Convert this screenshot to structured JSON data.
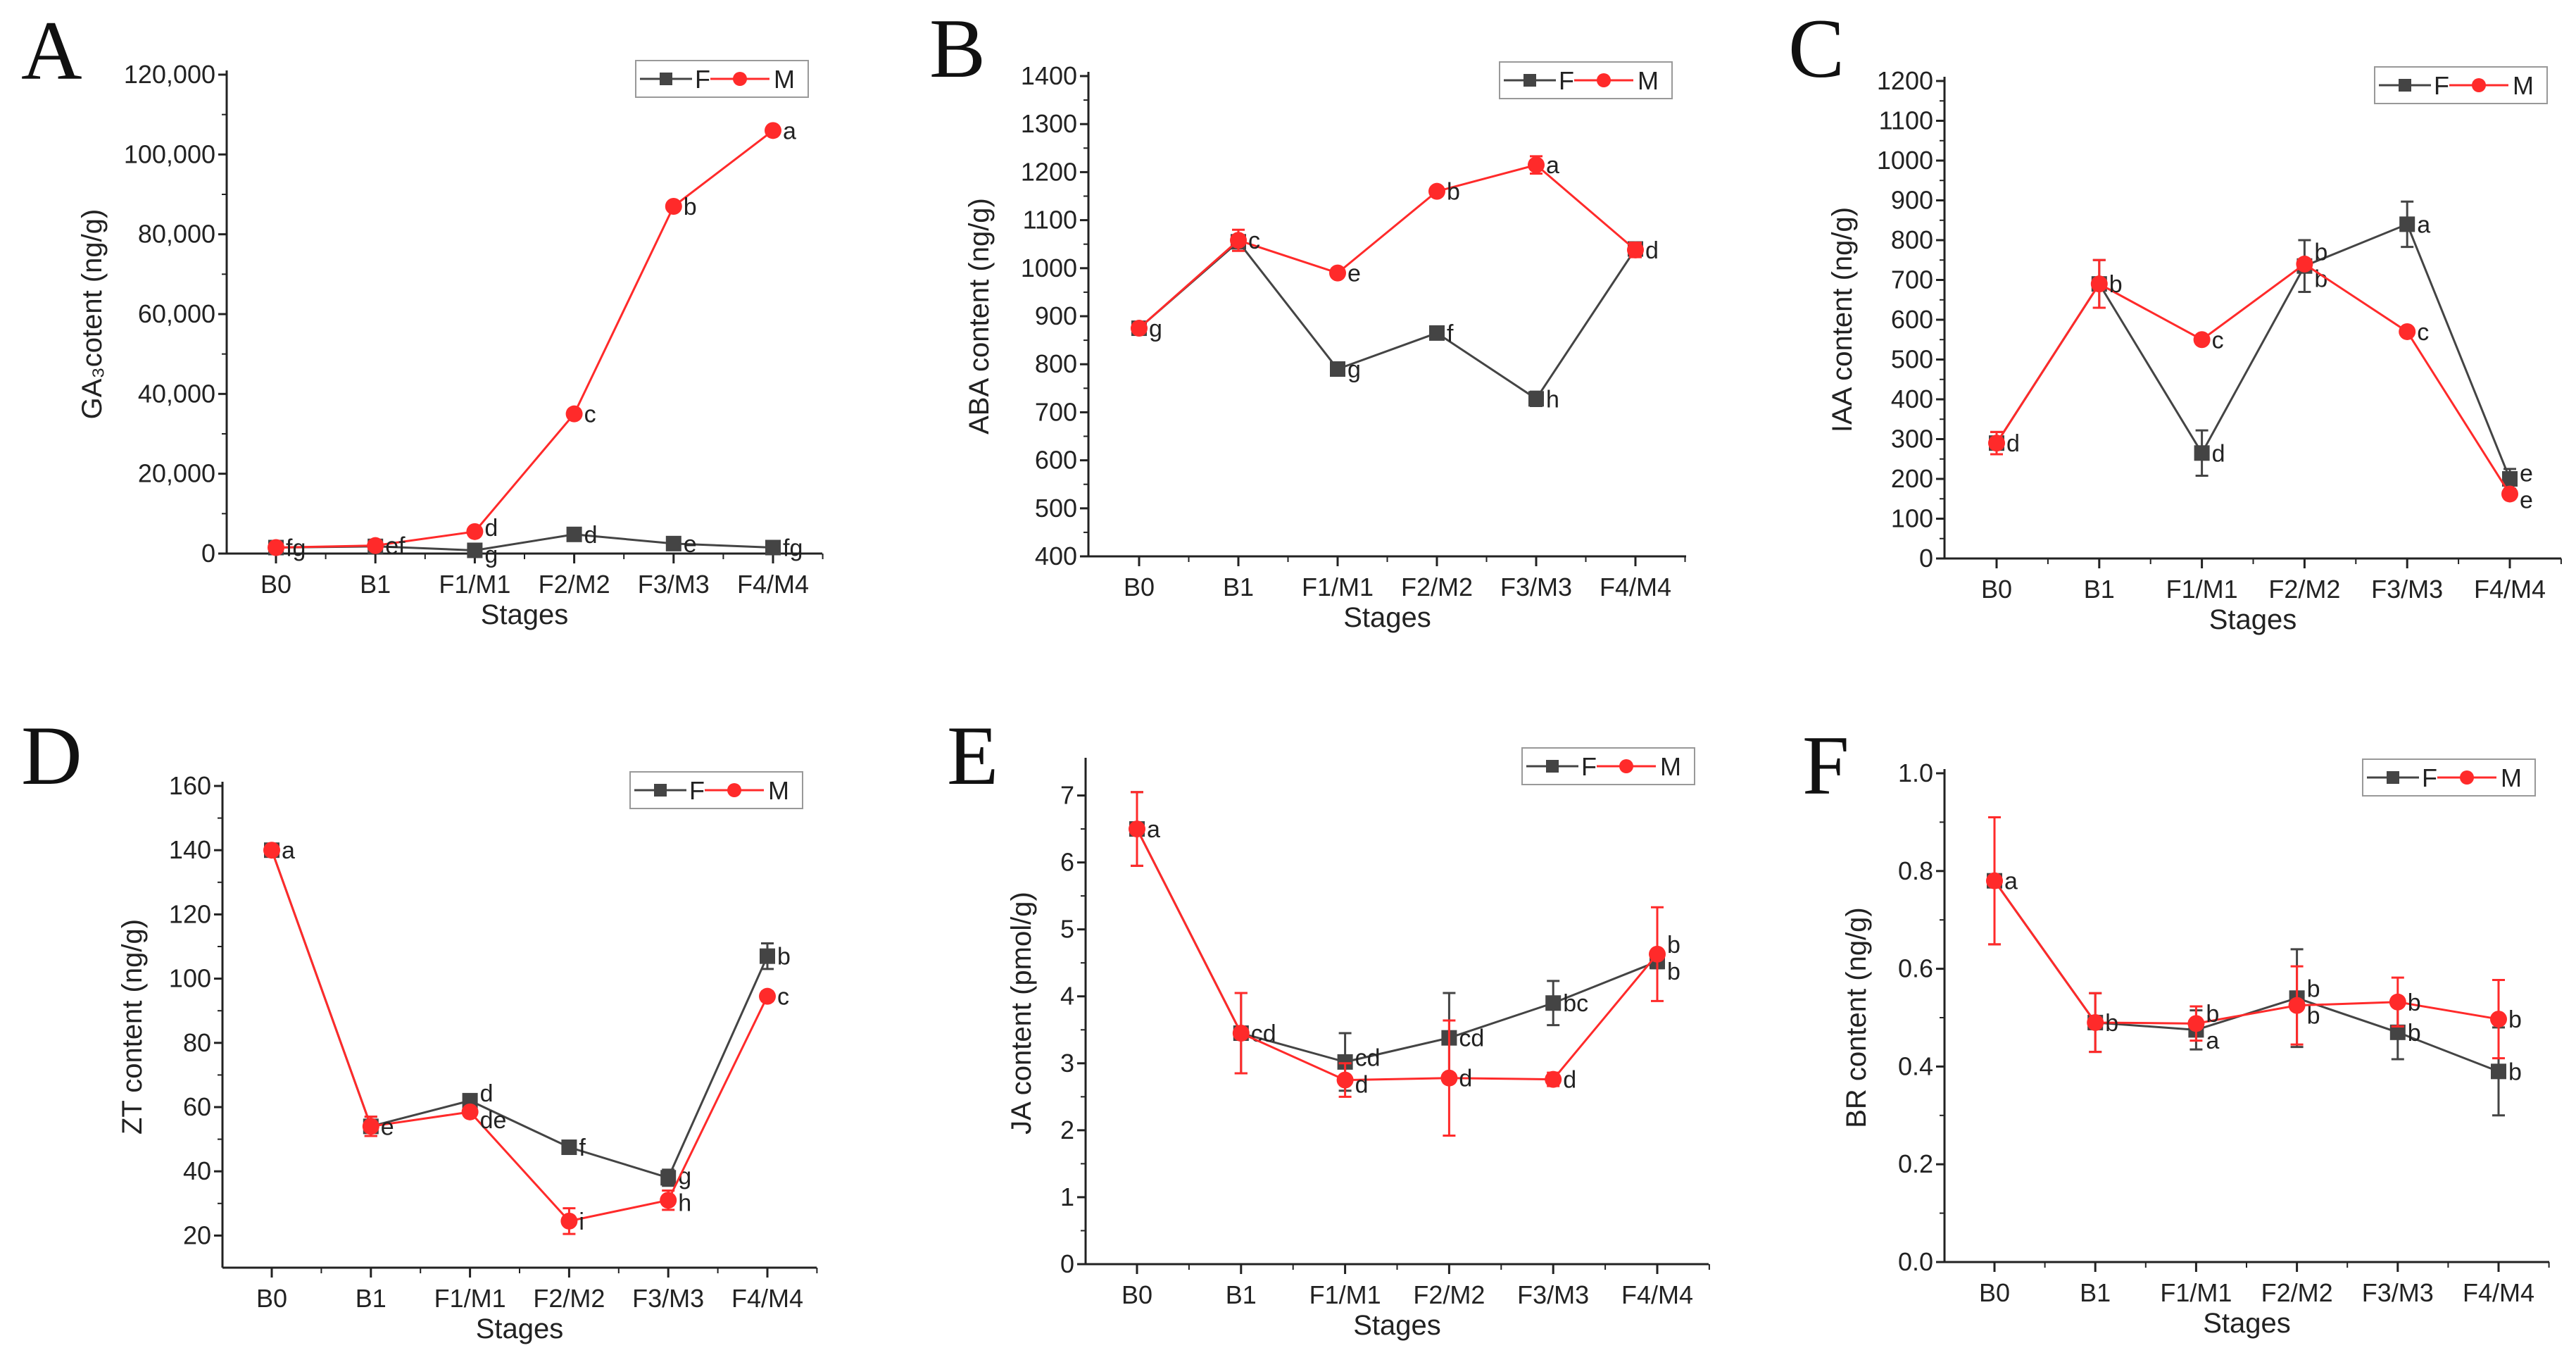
{
  "colors": {
    "F": "#444444",
    "M": "#ff2a2a"
  },
  "chart_data": [
    {
      "panel": "A",
      "type": "line",
      "title": "",
      "xlabel": "Stages",
      "ylabel": "GA₃cotent  (ng/g)",
      "categories": [
        "B0",
        "B1",
        "F1/M1",
        "F2/M2",
        "F3/M3",
        "F4/M4"
      ],
      "ylim": [
        0,
        120000
      ],
      "yticks": [
        0,
        20000,
        40000,
        60000,
        80000,
        100000,
        120000
      ],
      "ytick_labels": [
        "0",
        "20,000",
        "40,000",
        "60,000",
        "80,000",
        "100,000",
        "120,000"
      ],
      "legend": [
        "F",
        "M"
      ],
      "legend_position": "top-right",
      "series": [
        {
          "name": "F",
          "values": [
            1500,
            1800,
            800,
            4800,
            2500,
            1500
          ],
          "errors": [
            0,
            0,
            0,
            0,
            0,
            0
          ],
          "labels": [
            null,
            null,
            "g",
            "d",
            "e",
            "fg"
          ]
        },
        {
          "name": "M",
          "values": [
            1500,
            2000,
            5500,
            35000,
            87000,
            106000
          ],
          "errors": [
            0,
            0,
            0,
            0,
            0,
            0
          ],
          "labels": [
            "fg",
            "ef",
            "d",
            "c",
            "b",
            "a"
          ]
        }
      ]
    },
    {
      "panel": "B",
      "type": "line",
      "title": "",
      "xlabel": "Stages",
      "ylabel": "ABA content (ng/g)",
      "categories": [
        "B0",
        "B1",
        "F1/M1",
        "F2/M2",
        "F3/M3",
        "F4/M4"
      ],
      "ylim": [
        400,
        1400
      ],
      "yticks": [
        400,
        500,
        600,
        700,
        800,
        900,
        1000,
        1100,
        1200,
        1300,
        1400
      ],
      "ytick_labels": [
        "400",
        "500",
        "600",
        "700",
        "800",
        "900",
        "1000",
        "1100",
        "1200",
        "1300",
        "1400"
      ],
      "legend": [
        "F",
        "M"
      ],
      "legend_position": "top-right",
      "series": [
        {
          "name": "F",
          "values": [
            875,
            1055,
            790,
            865,
            728,
            1040
          ],
          "errors": [
            0,
            0,
            8,
            8,
            15,
            12
          ],
          "labels": [
            null,
            null,
            "g",
            "f",
            "h",
            null
          ]
        },
        {
          "name": "M",
          "values": [
            875,
            1058,
            990,
            1160,
            1215,
            1038
          ],
          "errors": [
            10,
            22,
            8,
            8,
            18,
            15
          ],
          "labels": [
            "g",
            "c",
            "e",
            "b",
            "a",
            "d"
          ]
        }
      ]
    },
    {
      "panel": "C",
      "type": "line",
      "title": "",
      "xlabel": "Stages",
      "ylabel": "IAA content (ng/g)",
      "categories": [
        "B0",
        "B1",
        "F1/M1",
        "F2/M2",
        "F3/M3",
        "F4/M4"
      ],
      "ylim": [
        0,
        1200
      ],
      "yticks": [
        0,
        100,
        200,
        300,
        400,
        500,
        600,
        700,
        800,
        900,
        1000,
        1100,
        1200
      ],
      "ytick_labels": [
        "0",
        "100",
        "200",
        "300",
        "400",
        "500",
        "600",
        "700",
        "800",
        "900",
        "1000",
        "1100",
        "1200"
      ],
      "legend": [
        "F",
        "M"
      ],
      "legend_position": "top-right",
      "series": [
        {
          "name": "F",
          "values": [
            290,
            690,
            265,
            735,
            840,
            200
          ],
          "errors": [
            28,
            60,
            57,
            65,
            57,
            25
          ],
          "labels": [
            null,
            null,
            "d",
            "b",
            "a",
            "e"
          ]
        },
        {
          "name": "M",
          "values": [
            290,
            690,
            550,
            740,
            570,
            162
          ],
          "errors": [
            28,
            60,
            10,
            10,
            10,
            8
          ],
          "labels": [
            "d",
            "b",
            "c",
            "b",
            "c",
            "e"
          ]
        }
      ]
    },
    {
      "panel": "D",
      "type": "line",
      "title": "",
      "xlabel": "Stages",
      "ylabel": "ZT content (ng/g)",
      "categories": [
        "B0",
        "B1",
        "F1/M1",
        "F2/M2",
        "F3/M3",
        "F4/M4"
      ],
      "ylim": [
        10,
        160
      ],
      "yticks": [
        20,
        40,
        60,
        80,
        100,
        120,
        140,
        160
      ],
      "ytick_labels": [
        "20",
        "40",
        "60",
        "80",
        "100",
        "120",
        "140",
        "160"
      ],
      "legend": [
        "F",
        "M"
      ],
      "legend_position": "top-right",
      "series": [
        {
          "name": "F",
          "values": [
            140,
            54,
            62,
            47.5,
            38,
            107
          ],
          "errors": [
            1,
            3,
            1,
            1,
            2.5,
            4
          ],
          "labels": [
            null,
            null,
            "d",
            "f",
            "g",
            "b"
          ]
        },
        {
          "name": "M",
          "values": [
            140,
            54,
            58.5,
            24.5,
            31,
            94.5
          ],
          "errors": [
            1,
            3,
            1,
            4,
            3,
            1.5
          ],
          "labels": [
            "a",
            "e",
            "de",
            "i",
            "h",
            "c"
          ]
        }
      ]
    },
    {
      "panel": "E",
      "type": "line",
      "title": "",
      "xlabel": "Stages",
      "ylabel": "JA content (pmol/g)",
      "categories": [
        "B0",
        "B1",
        "F1/M1",
        "F2/M2",
        "F3/M3",
        "F4/M4"
      ],
      "ylim": [
        0,
        7.5
      ],
      "yticks": [
        0,
        1,
        2,
        3,
        4,
        5,
        6,
        7
      ],
      "ytick_labels": [
        "0",
        "1",
        "2",
        "3",
        "4",
        "5",
        "6",
        "7"
      ],
      "legend": [
        "F",
        "M"
      ],
      "legend_position": "top-right",
      "series": [
        {
          "name": "F",
          "values": [
            6.5,
            3.45,
            3.02,
            3.38,
            3.9,
            4.52
          ],
          "errors": [
            0.55,
            0.6,
            0.43,
            0.67,
            0.33,
            0.1
          ],
          "labels": [
            null,
            "cd",
            "cd",
            "cd",
            "bc",
            "b"
          ]
        },
        {
          "name": "M",
          "values": [
            6.5,
            3.45,
            2.75,
            2.78,
            2.76,
            4.63
          ],
          "errors": [
            0.55,
            0.6,
            0.25,
            0.86,
            0.1,
            0.7
          ],
          "labels": [
            "a",
            null,
            "d",
            "d",
            "d",
            "b"
          ]
        }
      ]
    },
    {
      "panel": "F",
      "type": "line",
      "title": "",
      "xlabel": "Stages",
      "ylabel": "BR content (ng/g)",
      "categories": [
        "B0",
        "B1",
        "F1/M1",
        "F2/M2",
        "F3/M3",
        "F4/M4"
      ],
      "ylim": [
        0,
        1.0
      ],
      "yticks": [
        0,
        0.2,
        0.4,
        0.6,
        0.8,
        1.0
      ],
      "ytick_labels": [
        "0.0",
        "0.2",
        "0.4",
        "0.6",
        "0.8",
        "1.0"
      ],
      "legend": [
        "F",
        "M"
      ],
      "legend_position": "top-right",
      "series": [
        {
          "name": "F",
          "values": [
            0.78,
            0.49,
            0.475,
            0.54,
            0.47,
            0.39
          ],
          "errors": [
            0.13,
            0.06,
            0.04,
            0.1,
            0.055,
            0.09
          ],
          "labels": [
            null,
            null,
            "a",
            "b",
            "b",
            "b"
          ]
        },
        {
          "name": "M",
          "values": [
            0.78,
            0.49,
            0.488,
            0.525,
            0.532,
            0.497
          ],
          "errors": [
            0.13,
            0.06,
            0.035,
            0.08,
            0.05,
            0.08
          ],
          "labels": [
            "a",
            "b",
            "b",
            "b",
            "b",
            "b"
          ]
        }
      ]
    }
  ]
}
